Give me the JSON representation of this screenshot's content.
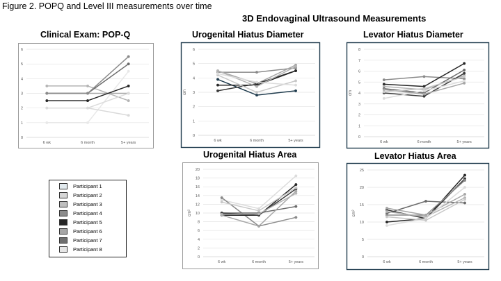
{
  "figure_title": "Figure 2. POPQ and Level III measurements over time",
  "super_title": "3D Endovaginal Ultrasound Measurements",
  "series_colors": [
    "#e8e8e8",
    "#d9d9d9",
    "#b4b4b4",
    "#8a8a8a",
    "#262626",
    "#a6a6a6",
    "#6b6b6b",
    "#dcdcdc"
  ],
  "legend": [
    {
      "label": "Participant 1",
      "color": "#e2eaee"
    },
    {
      "label": "Participant 2",
      "color": "#d6d6d6"
    },
    {
      "label": "Participant 3",
      "color": "#bfbfbf"
    },
    {
      "label": "Participant 4",
      "color": "#8c8c8c"
    },
    {
      "label": "Participant 5",
      "color": "#262626"
    },
    {
      "label": "Participant 6",
      "color": "#a6a6a6"
    },
    {
      "label": "Participant 7",
      "color": "#6e6e6e"
    },
    {
      "label": "Participant 8",
      "color": "#e6e6e6"
    }
  ],
  "chart_data": [
    {
      "id": "popq",
      "type": "line",
      "title": "Clinical Exam: POP-Q",
      "ylabel": "",
      "categories": [
        "6 wk",
        "6 month",
        "5+ years"
      ],
      "yticks": [
        0,
        1,
        2,
        3,
        4,
        5,
        6
      ],
      "ylim": [
        0,
        6
      ],
      "grid": true,
      "series": [
        {
          "values": [
            1,
            1,
            4.5
          ],
          "color": "#e8e8e8"
        },
        {
          "values": [
            2,
            2,
            1.5
          ],
          "color": "#d9d9d9"
        },
        {
          "values": [
            3.5,
            3.5,
            2.5
          ],
          "color": "#b4b4b4"
        },
        {
          "values": [
            3,
            3,
            3
          ],
          "color": "#a6a6a6"
        },
        {
          "values": [
            2.5,
            2.5,
            3.5
          ],
          "color": "#262626"
        },
        {
          "values": [
            3,
            3,
            5
          ],
          "color": "#6b6b6b"
        },
        {
          "values": [
            3,
            3,
            5.5
          ],
          "color": "#8a8a8a"
        },
        {
          "values": [
            2,
            2,
            3
          ],
          "color": "#dcdcdc"
        }
      ]
    },
    {
      "id": "ugh-diameter",
      "type": "line",
      "title": "Urogenital Hiatus Diameter",
      "ylabel": "cm",
      "categories": [
        "6 wk",
        "6 month",
        "5+ years"
      ],
      "yticks": [
        0,
        1,
        2,
        3,
        4,
        5,
        6
      ],
      "ylim": [
        0,
        6
      ],
      "grid": true,
      "series": [
        {
          "values": [
            4.4,
            4.4,
            4.7
          ],
          "color": "#8a8a8a"
        },
        {
          "values": [
            4.5,
            3.6,
            4.9
          ],
          "color": "#a6a6a6"
        },
        {
          "values": [
            3.9,
            2.8,
            3.1
          ],
          "color": "#1f3b4d"
        },
        {
          "values": [
            3.1,
            3.6,
            4.5
          ],
          "color": "#3a3a3a"
        },
        {
          "values": [
            3.5,
            3.5,
            4.5
          ],
          "color": "#262626"
        },
        {
          "values": [
            4.2,
            3.0,
            3.8
          ],
          "color": "#c8c8c8"
        },
        {
          "values": [
            4.5,
            3.4,
            4.8
          ],
          "color": "#b4b4b4"
        },
        {
          "values": [
            4.3,
            3.7,
            3.5
          ],
          "color": "#dcdcdc"
        }
      ]
    },
    {
      "id": "lh-diameter",
      "type": "line",
      "title": "Levator Hiatus Diameter",
      "ylabel": "cm",
      "categories": [
        "6 wk",
        "6 month",
        "5+ years"
      ],
      "yticks": [
        0,
        1,
        2,
        3,
        4,
        5,
        6,
        7,
        8
      ],
      "ylim": [
        0,
        8
      ],
      "grid": true,
      "series": [
        {
          "values": [
            5.2,
            5.5,
            5.3
          ],
          "color": "#8a8a8a"
        },
        {
          "values": [
            4.8,
            4.6,
            6.7
          ],
          "color": "#262626"
        },
        {
          "values": [
            4.6,
            4.3,
            5.6
          ],
          "color": "#b4b4b4"
        },
        {
          "values": [
            4.4,
            4.0,
            6.1
          ],
          "color": "#6b6b6b"
        },
        {
          "values": [
            4.0,
            3.7,
            5.8
          ],
          "color": "#3a3a3a"
        },
        {
          "values": [
            3.5,
            4.2,
            5.1
          ],
          "color": "#dcdcdc"
        },
        {
          "values": [
            4.3,
            3.9,
            4.9
          ],
          "color": "#a6a6a6"
        },
        {
          "values": [
            4.1,
            4.4,
            5.5
          ],
          "color": "#c8c8c8"
        }
      ]
    },
    {
      "id": "ugh-area",
      "type": "line",
      "title": "Urogenital Hiatus Area",
      "ylabel": "cm²",
      "categories": [
        "6 wk",
        "6 month",
        "5+ years"
      ],
      "yticks": [
        0,
        2,
        4,
        6,
        8,
        10,
        12,
        14,
        16,
        18,
        20
      ],
      "ylim": [
        0,
        20
      ],
      "grid": true,
      "series": [
        {
          "values": [
            13,
            11,
            18.5
          ],
          "color": "#dcdcdc"
        },
        {
          "values": [
            13.5,
            7,
            9
          ],
          "color": "#8a8a8a"
        },
        {
          "values": [
            10,
            10,
            11.5
          ],
          "color": "#6b6b6b"
        },
        {
          "values": [
            9.5,
            9.5,
            16.5
          ],
          "color": "#262626"
        },
        {
          "values": [
            10,
            9.5,
            15.5
          ],
          "color": "#3a3a3a"
        },
        {
          "values": [
            9.5,
            7,
            15
          ],
          "color": "#a6a6a6"
        },
        {
          "values": [
            9.7,
            9.8,
            14.5
          ],
          "color": "#b4b4b4"
        },
        {
          "values": [
            12.5,
            10.5,
            15.8
          ],
          "color": "#c8c8c8"
        }
      ]
    },
    {
      "id": "lh-area",
      "type": "line",
      "title": "Levator Hiatus Area",
      "ylabel": "cm²",
      "categories": [
        "6 wk",
        "6 month",
        "5+ years"
      ],
      "yticks": [
        0,
        5,
        10,
        15,
        20,
        25
      ],
      "ylim": [
        0,
        25
      ],
      "grid": true,
      "series": [
        {
          "values": [
            12.5,
            16,
            15.5
          ],
          "color": "#6b6b6b"
        },
        {
          "values": [
            10,
            11,
            23.5
          ],
          "color": "#262626"
        },
        {
          "values": [
            13.5,
            11,
            22.5
          ],
          "color": "#3a3a3a"
        },
        {
          "values": [
            12,
            12,
            22
          ],
          "color": "#8a8a8a"
        },
        {
          "values": [
            14,
            12,
            18
          ],
          "color": "#a6a6a6"
        },
        {
          "values": [
            13,
            11.5,
            17
          ],
          "color": "#b4b4b4"
        },
        {
          "values": [
            9,
            11,
            20
          ],
          "color": "#dcdcdc"
        },
        {
          "values": [
            11.5,
            10.5,
            16.5
          ],
          "color": "#c8c8c8"
        }
      ]
    }
  ]
}
